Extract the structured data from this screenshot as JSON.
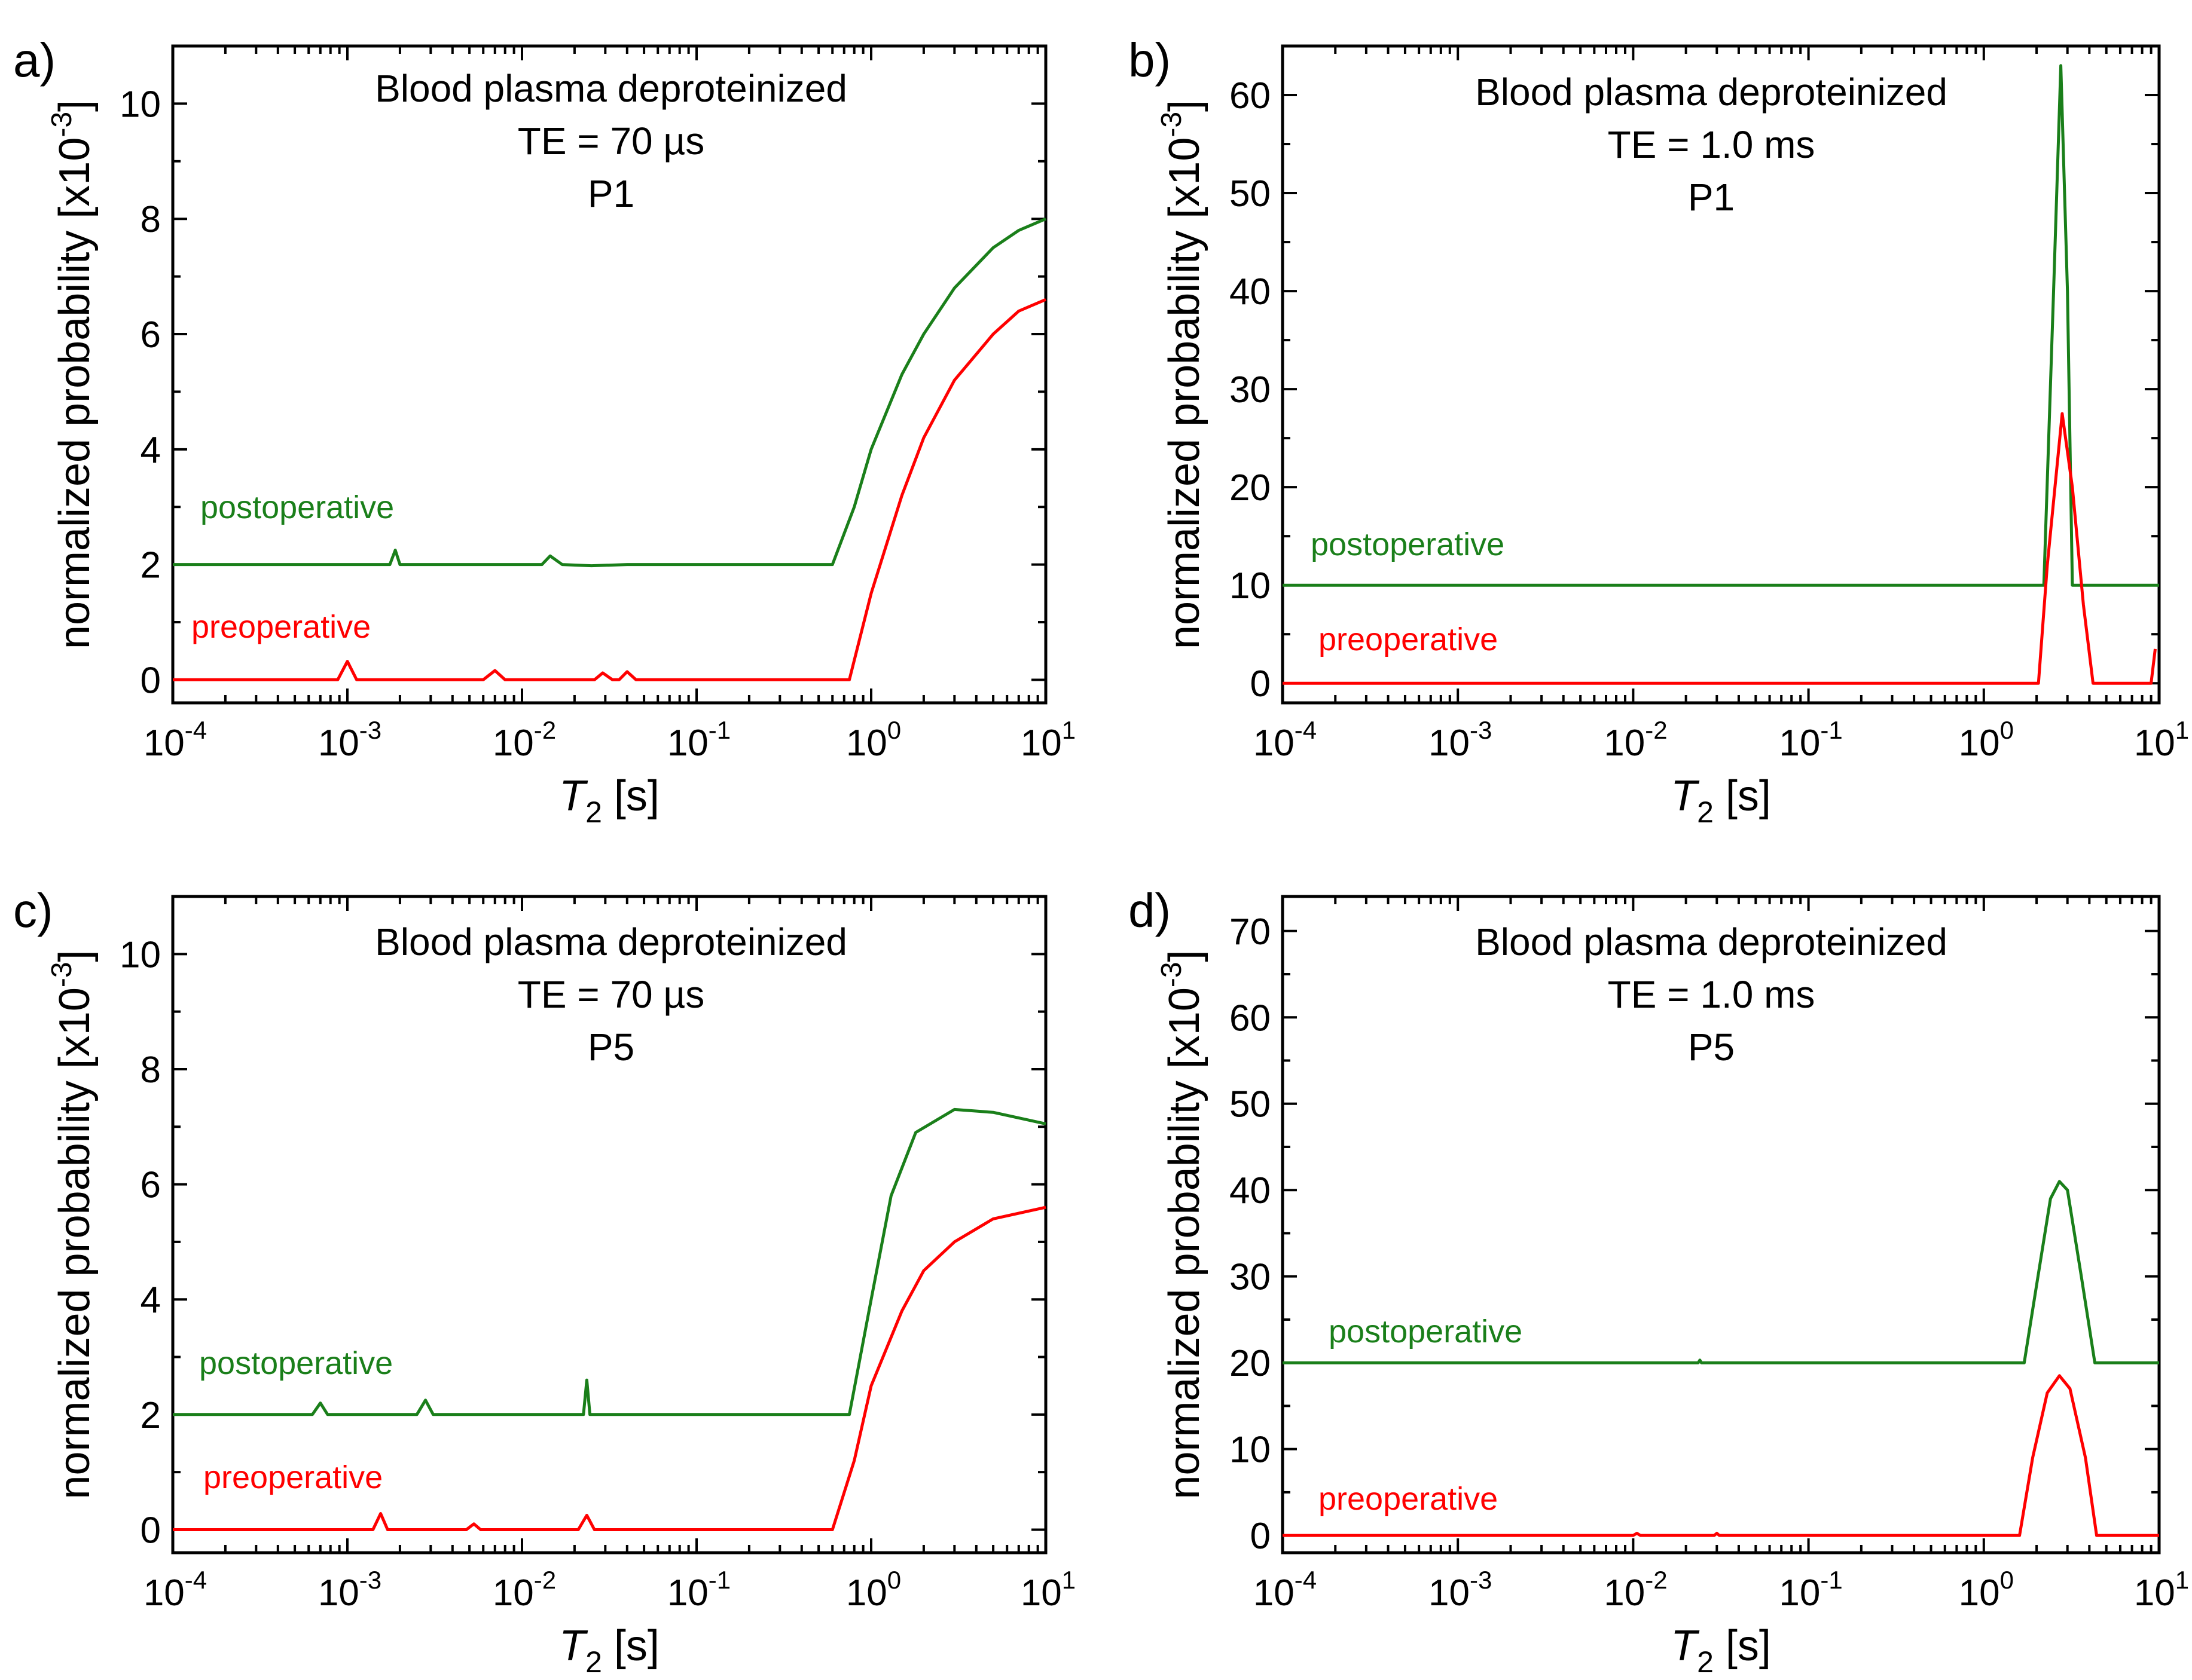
{
  "figure": {
    "panels": [
      {
        "label": "a)",
        "title_lines": [
          "Blood plasma deproteinized",
          "TE = 70 µs",
          "P1"
        ],
        "xlabel": "T",
        "xlabel_sub": "2",
        "xlabel_unit": " [s]",
        "ylabel": "normalized probability [x10",
        "ylabel_sup": "-3",
        "ylabel_close": "]",
        "xlim": [
          -4,
          1
        ],
        "ylim": [
          -0.4,
          11
        ],
        "xticks": [
          -4,
          -3,
          -2,
          -1,
          0,
          1
        ],
        "xtick_base": "10",
        "xtick_exponents": [
          "-4",
          "-3",
          "-2",
          "-1",
          "0",
          "1"
        ],
        "yticks": [
          0,
          2,
          4,
          6,
          8,
          10
        ],
        "ytick_labels": [
          "0",
          "2",
          "4",
          "6",
          "8",
          "10"
        ],
        "legend_labels": {
          "green": "postoperative",
          "red": "preoperative"
        }
      },
      {
        "label": "b)",
        "title_lines": [
          "Blood plasma deproteinized",
          "TE = 1.0 ms",
          "P1"
        ],
        "xlabel": "T",
        "xlabel_sub": "2",
        "xlabel_unit": " [s]",
        "ylabel": "normalized probability [x10",
        "ylabel_sup": "-3",
        "ylabel_close": "]",
        "xlim": [
          -4,
          1
        ],
        "ylim": [
          -2,
          65
        ],
        "xticks": [
          -4,
          -3,
          -2,
          -1,
          0,
          1
        ],
        "xtick_base": "10",
        "xtick_exponents": [
          "-4",
          "-3",
          "-2",
          "-1",
          "0",
          "1"
        ],
        "yticks": [
          0,
          10,
          20,
          30,
          40,
          50,
          60
        ],
        "ytick_labels": [
          "0",
          "10",
          "20",
          "30",
          "40",
          "50",
          "60"
        ],
        "legend_labels": {
          "green": "postoperative",
          "red": "preoperative"
        }
      },
      {
        "label": "c)",
        "title_lines": [
          "Blood plasma deproteinized",
          "TE = 70 µs",
          "P5"
        ],
        "xlabel": "T",
        "xlabel_sub": "2",
        "xlabel_unit": " [s]",
        "ylabel": "normalized probability [x10",
        "ylabel_sup": "-3",
        "ylabel_close": "]",
        "xlim": [
          -4,
          1
        ],
        "ylim": [
          -0.4,
          11
        ],
        "xticks": [
          -4,
          -3,
          -2,
          -1,
          0,
          1
        ],
        "xtick_base": "10",
        "xtick_exponents": [
          "-4",
          "-3",
          "-2",
          "-1",
          "0",
          "1"
        ],
        "yticks": [
          0,
          2,
          4,
          6,
          8,
          10
        ],
        "ytick_labels": [
          "0",
          "2",
          "4",
          "6",
          "8",
          "10"
        ],
        "legend_labels": {
          "green": "postoperative",
          "red": "preoperative"
        }
      },
      {
        "label": "d)",
        "title_lines": [
          "Blood plasma deproteinized",
          "TE = 1.0 ms",
          "P5"
        ],
        "xlabel": "T",
        "xlabel_sub": "2",
        "xlabel_unit": " [s]",
        "ylabel": "normalized probability [x10",
        "ylabel_sup": "-3",
        "ylabel_close": "]",
        "xlim": [
          -4,
          1
        ],
        "ylim": [
          -2,
          74
        ],
        "xticks": [
          -4,
          -3,
          -2,
          -1,
          0,
          1
        ],
        "xtick_base": "10",
        "xtick_exponents": [
          "-4",
          "-3",
          "-2",
          "-1",
          "0",
          "1"
        ],
        "yticks": [
          0,
          10,
          20,
          30,
          40,
          50,
          60,
          70
        ],
        "ytick_labels": [
          "0",
          "10",
          "20",
          "30",
          "40",
          "50",
          "60",
          "70"
        ],
        "legend_labels": {
          "green": "postoperative",
          "red": "preoperative"
        }
      }
    ]
  },
  "colors": {
    "green": "#1a7f1a",
    "red": "#ff0000"
  },
  "chart_data": [
    {
      "type": "line",
      "x_scale": "log",
      "xlim": [
        0.0001,
        10
      ],
      "ylim": [
        -0.4,
        11
      ],
      "series": [
        {
          "name": "postoperative",
          "color": "#1a7f1a",
          "points": [
            [
              0.0001,
              2.0
            ],
            [
              0.00175,
              2.0
            ],
            [
              0.00188,
              2.25
            ],
            [
              0.002,
              2.0
            ],
            [
              0.013,
              2.0
            ],
            [
              0.0145,
              2.15
            ],
            [
              0.017,
              2.0
            ],
            [
              0.025,
              1.98
            ],
            [
              0.04,
              2.0
            ],
            [
              0.6,
              2.0
            ],
            [
              0.8,
              3.0
            ],
            [
              1.0,
              4.0
            ],
            [
              1.5,
              5.3
            ],
            [
              2.0,
              6.0
            ],
            [
              3.0,
              6.8
            ],
            [
              5.0,
              7.5
            ],
            [
              7.0,
              7.8
            ],
            [
              10.0,
              8.0
            ]
          ]
        },
        {
          "name": "preoperative",
          "color": "#ff0000",
          "points": [
            [
              0.0001,
              0.0
            ],
            [
              0.00088,
              0.0
            ],
            [
              0.001,
              0.32
            ],
            [
              0.00113,
              0.0
            ],
            [
              0.006,
              0.0
            ],
            [
              0.007,
              0.16
            ],
            [
              0.008,
              0.0
            ],
            [
              0.026,
              0.0
            ],
            [
              0.029,
              0.12
            ],
            [
              0.033,
              0.0
            ],
            [
              0.036,
              0.0
            ],
            [
              0.04,
              0.14
            ],
            [
              0.045,
              0.0
            ],
            [
              0.75,
              0.0
            ],
            [
              1.0,
              1.5
            ],
            [
              1.5,
              3.2
            ],
            [
              2.0,
              4.2
            ],
            [
              3.0,
              5.2
            ],
            [
              5.0,
              6.0
            ],
            [
              7.0,
              6.4
            ],
            [
              10.0,
              6.6
            ]
          ]
        }
      ]
    },
    {
      "type": "line",
      "x_scale": "log",
      "xlim": [
        0.0001,
        10
      ],
      "ylim": [
        -2,
        65
      ],
      "series": [
        {
          "name": "postoperative",
          "color": "#1a7f1a",
          "points": [
            [
              0.0001,
              10.0
            ],
            [
              2.2,
              10.0
            ],
            [
              2.5,
              40.0
            ],
            [
              2.75,
              63.0
            ],
            [
              3.0,
              40.0
            ],
            [
              3.2,
              10.0
            ],
            [
              10.0,
              10.0
            ]
          ]
        },
        {
          "name": "preoperative",
          "color": "#ff0000",
          "points": [
            [
              0.0001,
              0.0
            ],
            [
              2.05,
              0.0
            ],
            [
              2.3,
              12.0
            ],
            [
              2.8,
              27.5
            ],
            [
              3.2,
              20.0
            ],
            [
              3.7,
              8.0
            ],
            [
              4.2,
              0.0
            ],
            [
              9.0,
              0.0
            ],
            [
              9.5,
              3.5
            ]
          ]
        }
      ]
    },
    {
      "type": "line",
      "x_scale": "log",
      "xlim": [
        0.0001,
        10
      ],
      "ylim": [
        -0.4,
        11
      ],
      "series": [
        {
          "name": "postoperative",
          "color": "#1a7f1a",
          "points": [
            [
              0.0001,
              2.0
            ],
            [
              0.00063,
              2.0
            ],
            [
              0.0007,
              2.2
            ],
            [
              0.00077,
              2.0
            ],
            [
              0.0025,
              2.0
            ],
            [
              0.0028,
              2.25
            ],
            [
              0.0031,
              2.0
            ],
            [
              0.0225,
              2.0
            ],
            [
              0.0235,
              2.6
            ],
            [
              0.0245,
              2.0
            ],
            [
              0.75,
              2.0
            ],
            [
              1.0,
              4.0
            ],
            [
              1.3,
              5.8
            ],
            [
              1.8,
              6.9
            ],
            [
              3.0,
              7.3
            ],
            [
              5.0,
              7.25
            ],
            [
              10.0,
              7.05
            ]
          ]
        },
        {
          "name": "preoperative",
          "color": "#ff0000",
          "points": [
            [
              0.0001,
              0.0
            ],
            [
              0.0014,
              0.0
            ],
            [
              0.00155,
              0.28
            ],
            [
              0.0017,
              0.0
            ],
            [
              0.0048,
              0.0
            ],
            [
              0.0053,
              0.1
            ],
            [
              0.0058,
              0.0
            ],
            [
              0.021,
              0.0
            ],
            [
              0.0235,
              0.25
            ],
            [
              0.026,
              0.0
            ],
            [
              0.6,
              0.0
            ],
            [
              0.8,
              1.2
            ],
            [
              1.0,
              2.5
            ],
            [
              1.5,
              3.8
            ],
            [
              2.0,
              4.5
            ],
            [
              3.0,
              5.0
            ],
            [
              5.0,
              5.4
            ],
            [
              10.0,
              5.6
            ]
          ]
        }
      ]
    },
    {
      "type": "line",
      "x_scale": "log",
      "xlim": [
        0.0001,
        10
      ],
      "ylim": [
        -2,
        74
      ],
      "series": [
        {
          "name": "postoperative",
          "color": "#1a7f1a",
          "points": [
            [
              0.0001,
              20.0
            ],
            [
              0.0235,
              20.0
            ],
            [
              0.024,
              20.3
            ],
            [
              0.0245,
              20.0
            ],
            [
              1.7,
              20.0
            ],
            [
              2.0,
              29.0
            ],
            [
              2.4,
              39.0
            ],
            [
              2.7,
              41.0
            ],
            [
              3.0,
              40.0
            ],
            [
              3.6,
              30.0
            ],
            [
              4.3,
              20.0
            ],
            [
              10.0,
              20.0
            ]
          ]
        },
        {
          "name": "preoperative",
          "color": "#ff0000",
          "points": [
            [
              0.0001,
              0.0
            ],
            [
              0.01,
              0.0
            ],
            [
              0.0105,
              0.25
            ],
            [
              0.011,
              0.0
            ],
            [
              0.029,
              0.0
            ],
            [
              0.03,
              0.25
            ],
            [
              0.031,
              0.0
            ],
            [
              1.6,
              0.0
            ],
            [
              1.9,
              9.0
            ],
            [
              2.3,
              16.5
            ],
            [
              2.7,
              18.5
            ],
            [
              3.1,
              17.0
            ],
            [
              3.8,
              9.0
            ],
            [
              4.4,
              0.0
            ],
            [
              10.0,
              0.0
            ]
          ]
        }
      ]
    }
  ]
}
